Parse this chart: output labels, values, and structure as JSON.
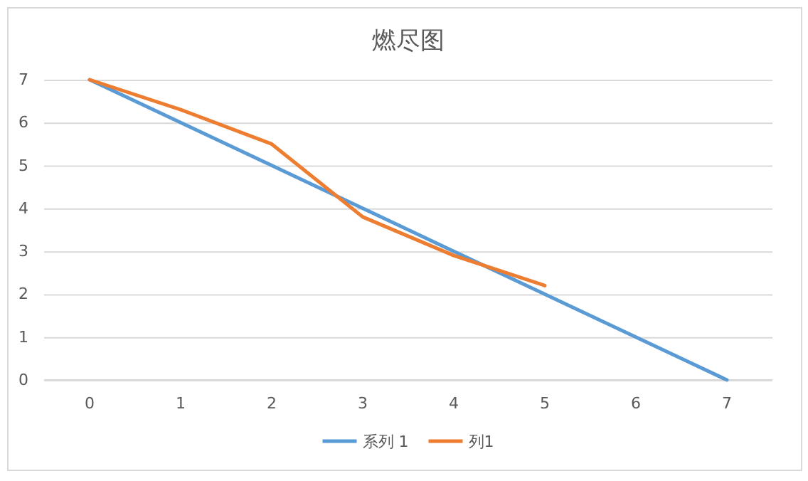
{
  "chart_data": {
    "type": "line",
    "title": "燃尽图",
    "categories": [
      "0",
      "1",
      "2",
      "3",
      "4",
      "5",
      "6",
      "7"
    ],
    "series": [
      {
        "name": "系列 1",
        "color": "#5b9bd5",
        "values": [
          7,
          6,
          5,
          4,
          3,
          2,
          1,
          0
        ]
      },
      {
        "name": "列1",
        "color": "#ed7d31",
        "values": [
          7,
          6.3,
          5.5,
          3.8,
          2.9,
          2.2,
          null,
          null
        ]
      }
    ],
    "ylim": [
      0,
      7
    ],
    "yticks": [
      0,
      1,
      2,
      3,
      4,
      5,
      6,
      7
    ],
    "grid": "y",
    "legend": "bottom",
    "marker": "none",
    "line_style": "solid"
  }
}
